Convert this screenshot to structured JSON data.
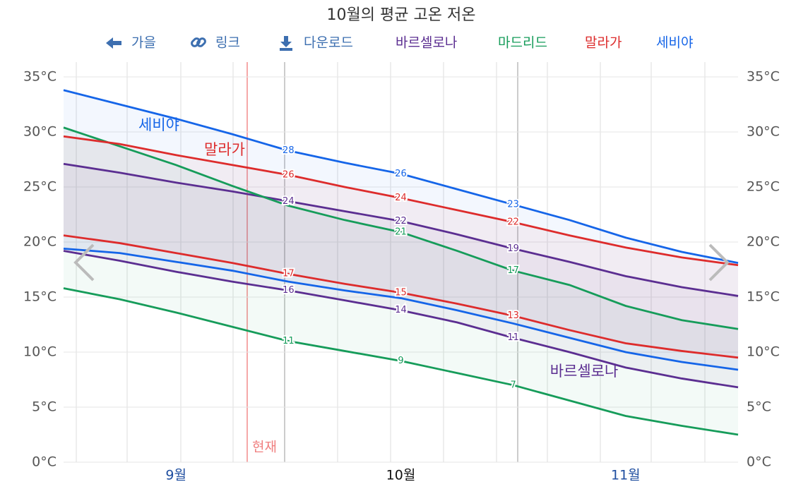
{
  "toolbar": [
    "가을",
    "링크",
    "다운로드"
  ],
  "chart_data": {
    "type": "range-line",
    "title": "10월의 평균 고온 저온",
    "categories": [
      null,
      null,
      "9월",
      null,
      null,
      null,
      "10월",
      null,
      null,
      null,
      "11월",
      null,
      null
    ],
    "ylim": [
      0,
      35
    ],
    "yticks": [
      {
        "value": 0,
        "label": "0°C"
      },
      {
        "value": 5,
        "label": "5°C"
      },
      {
        "value": 10,
        "label": "10°C"
      },
      {
        "value": 15,
        "label": "15°C"
      },
      {
        "value": 20,
        "label": "20°C"
      },
      {
        "value": 25,
        "label": "25°C"
      },
      {
        "value": 30,
        "label": "30°C"
      },
      {
        "value": 35,
        "label": "35°C"
      }
    ],
    "grid": true,
    "marker_label": "현재",
    "series": [
      {
        "name": "바르셀로나",
        "color": "#5b2e91",
        "high": {
          "values": [
            27.1,
            26.3,
            25.4,
            24.6,
            23.7,
            22.8,
            21.9,
            20.7,
            19.4,
            18.2,
            16.9,
            15.9,
            15.1
          ],
          "value_labels": [
            null,
            null,
            null,
            null,
            "24",
            null,
            "22",
            null,
            "19",
            null,
            null,
            null,
            null
          ]
        },
        "low": {
          "values": [
            19.2,
            18.3,
            17.3,
            16.4,
            15.6,
            14.7,
            13.8,
            12.7,
            11.3,
            10.0,
            8.6,
            7.6,
            6.8
          ],
          "value_labels": [
            null,
            null,
            null,
            null,
            "16",
            null,
            "14",
            null,
            "11",
            null,
            null,
            null,
            null
          ]
        }
      },
      {
        "name": "마드리드",
        "color": "#169c5a",
        "high": {
          "values": [
            30.4,
            28.7,
            27.0,
            25.1,
            23.3,
            22.0,
            20.9,
            19.2,
            17.4,
            16.1,
            14.2,
            12.9,
            12.1
          ],
          "value_labels": [
            null,
            null,
            null,
            null,
            null,
            null,
            "21",
            null,
            "17",
            null,
            null,
            null,
            null
          ]
        },
        "low": {
          "values": [
            15.8,
            14.8,
            13.6,
            12.3,
            11.0,
            10.1,
            9.2,
            8.1,
            7.0,
            5.6,
            4.2,
            3.3,
            2.5
          ],
          "value_labels": [
            null,
            null,
            null,
            null,
            "11",
            null,
            "9",
            null,
            "7",
            null,
            null,
            null,
            null
          ]
        }
      },
      {
        "name": "말라가",
        "color": "#dd2c2c",
        "high": {
          "values": [
            29.6,
            28.9,
            27.9,
            27.0,
            26.1,
            25.0,
            24.0,
            22.9,
            21.8,
            20.6,
            19.5,
            18.6,
            17.9
          ],
          "value_labels": [
            null,
            null,
            null,
            null,
            "26",
            null,
            "24",
            null,
            "22",
            null,
            null,
            null,
            null
          ]
        },
        "low": {
          "values": [
            20.6,
            19.9,
            19.0,
            18.1,
            17.1,
            16.2,
            15.4,
            14.4,
            13.3,
            12.0,
            10.8,
            10.1,
            9.5
          ],
          "value_labels": [
            null,
            null,
            null,
            null,
            "17",
            null,
            "15",
            null,
            "13",
            null,
            null,
            null,
            null
          ]
        }
      },
      {
        "name": "세비야",
        "color": "#1565e8",
        "high": {
          "values": [
            33.8,
            32.5,
            31.2,
            29.8,
            28.3,
            27.2,
            26.2,
            24.8,
            23.4,
            22.0,
            20.4,
            19.1,
            18.1
          ],
          "value_labels": [
            null,
            null,
            null,
            null,
            "28",
            null,
            "26",
            null,
            "23",
            null,
            null,
            null,
            null
          ]
        },
        "low": {
          "values": [
            19.4,
            19.0,
            18.2,
            17.4,
            16.4,
            15.6,
            14.9,
            13.8,
            12.6,
            11.3,
            10.0,
            9.1,
            8.4
          ]
        }
      }
    ]
  }
}
